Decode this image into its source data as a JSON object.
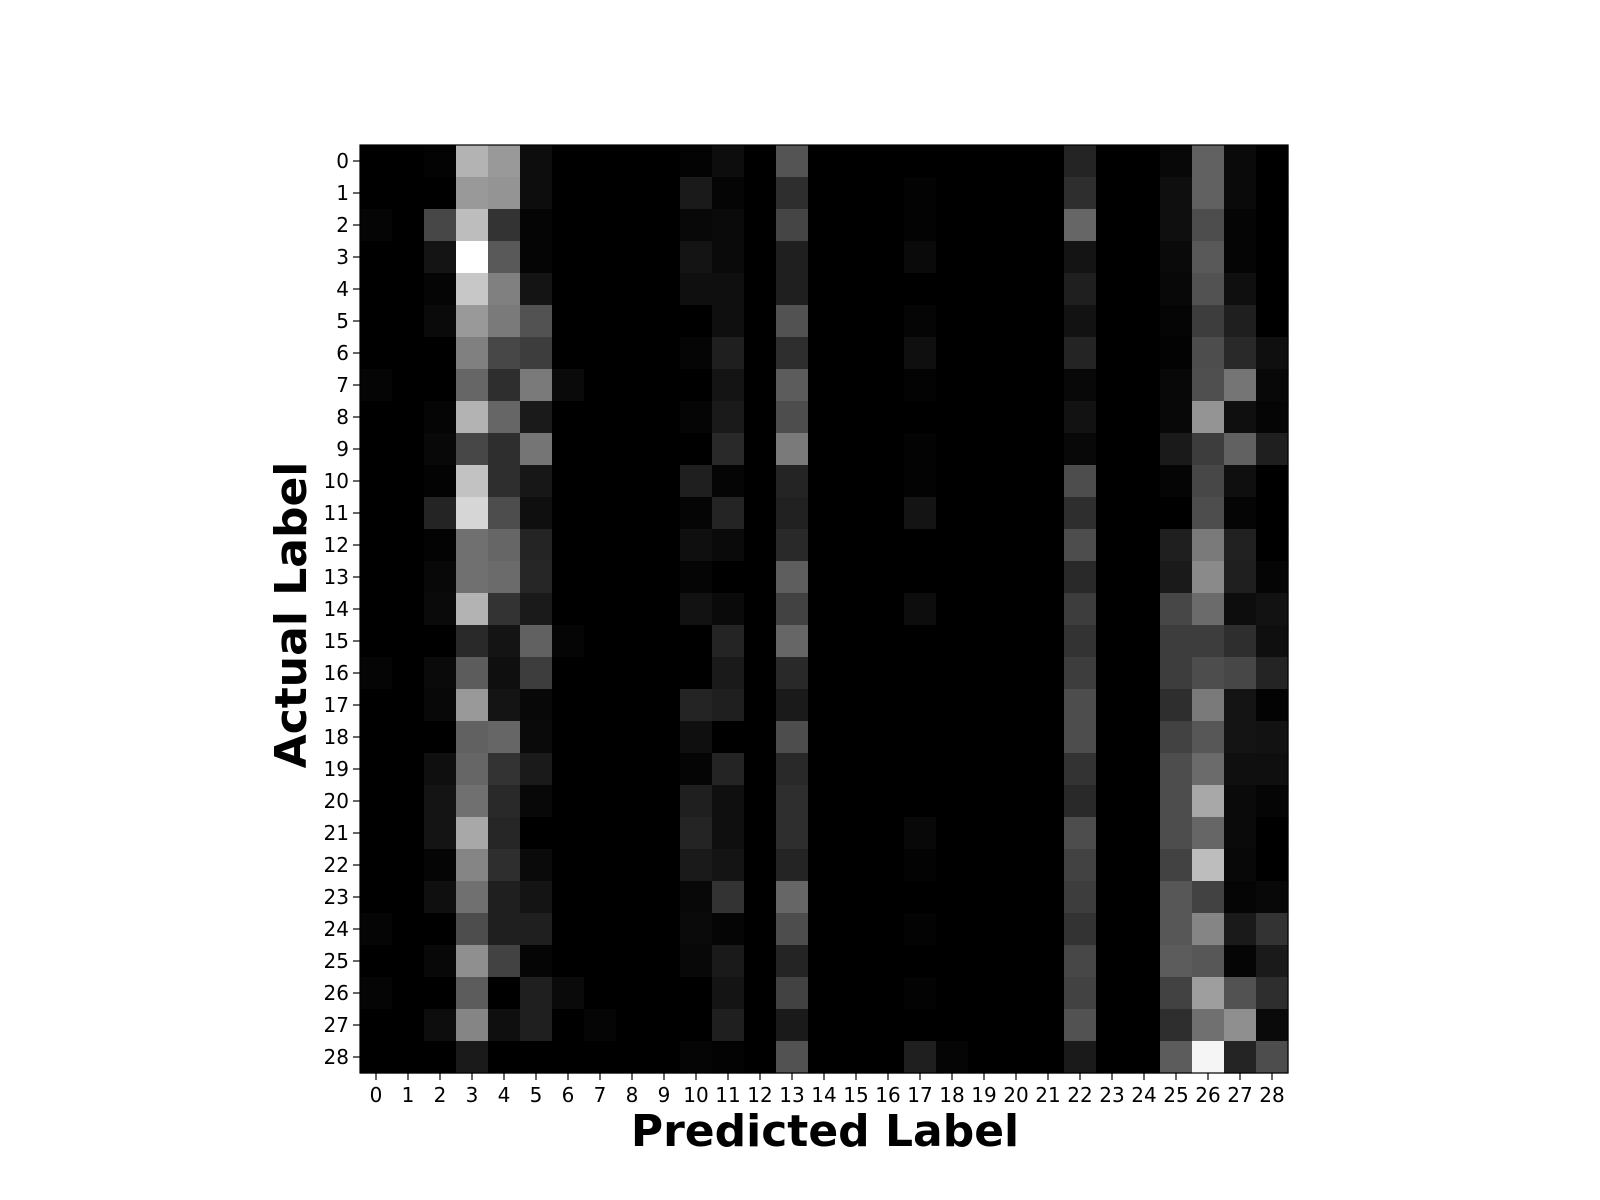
{
  "chart_data": {
    "type": "heatmap",
    "xlabel": "Predicted Label",
    "ylabel": "Actual Label",
    "x_ticks": [
      "0",
      "1",
      "2",
      "3",
      "4",
      "5",
      "6",
      "7",
      "8",
      "9",
      "10",
      "11",
      "12",
      "13",
      "14",
      "15",
      "16",
      "17",
      "18",
      "19",
      "20",
      "21",
      "22",
      "23",
      "24",
      "25",
      "26",
      "27",
      "28"
    ],
    "y_ticks": [
      "0",
      "1",
      "2",
      "3",
      "4",
      "5",
      "6",
      "7",
      "8",
      "9",
      "10",
      "11",
      "12",
      "13",
      "14",
      "15",
      "16",
      "17",
      "18",
      "19",
      "20",
      "21",
      "22",
      "23",
      "24",
      "25",
      "26",
      "27",
      "28"
    ],
    "colormap": "gray",
    "value_range": [
      0,
      1
    ],
    "grid": false,
    "values": [
      [
        0,
        0,
        0.01,
        0.7,
        0.6,
        0.05,
        0,
        0,
        0,
        0,
        0.01,
        0.05,
        0,
        0.33,
        0,
        0,
        0,
        0,
        0,
        0,
        0,
        0,
        0.14,
        0,
        0,
        0.03,
        0.38,
        0.04,
        0
      ],
      [
        0,
        0,
        0,
        0.6,
        0.58,
        0.05,
        0,
        0,
        0,
        0,
        0.1,
        0.02,
        0,
        0.18,
        0,
        0,
        0,
        0.01,
        0,
        0,
        0,
        0,
        0.18,
        0,
        0,
        0.06,
        0.38,
        0.04,
        0
      ],
      [
        0.02,
        0,
        0.28,
        0.74,
        0.2,
        0.02,
        0,
        0,
        0,
        0,
        0.03,
        0.04,
        0,
        0.27,
        0,
        0,
        0,
        0.01,
        0,
        0,
        0,
        0,
        0.4,
        0,
        0,
        0.06,
        0.3,
        0.02,
        0
      ],
      [
        0,
        0,
        0.08,
        1.0,
        0.35,
        0.02,
        0,
        0,
        0,
        0,
        0.08,
        0.04,
        0,
        0.12,
        0,
        0,
        0,
        0.04,
        0,
        0,
        0,
        0,
        0.08,
        0,
        0,
        0.04,
        0.35,
        0.02,
        0
      ],
      [
        0,
        0,
        0.02,
        0.78,
        0.5,
        0.08,
        0,
        0,
        0,
        0,
        0.06,
        0.06,
        0,
        0.12,
        0,
        0,
        0,
        0,
        0,
        0,
        0,
        0,
        0.12,
        0,
        0,
        0.03,
        0.32,
        0.06,
        0
      ],
      [
        0,
        0,
        0.04,
        0.6,
        0.48,
        0.32,
        0,
        0,
        0,
        0,
        0,
        0.06,
        0,
        0.32,
        0,
        0,
        0,
        0.02,
        0,
        0,
        0,
        0,
        0.07,
        0,
        0,
        0.02,
        0.24,
        0.12,
        0
      ],
      [
        0,
        0,
        0,
        0.5,
        0.28,
        0.24,
        0,
        0,
        0,
        0,
        0.02,
        0.12,
        0,
        0.18,
        0,
        0,
        0,
        0.06,
        0,
        0,
        0,
        0,
        0.14,
        0,
        0,
        0.01,
        0.3,
        0.16,
        0.06
      ],
      [
        0.02,
        0,
        0,
        0.4,
        0.18,
        0.48,
        0.04,
        0,
        0,
        0,
        0,
        0.08,
        0,
        0.36,
        0,
        0,
        0,
        0.01,
        0,
        0,
        0,
        0,
        0.03,
        0,
        0,
        0.03,
        0.31,
        0.46,
        0.03
      ],
      [
        0,
        0,
        0.02,
        0.7,
        0.4,
        0.1,
        0,
        0,
        0,
        0,
        0.02,
        0.1,
        0,
        0.3,
        0,
        0,
        0,
        0,
        0,
        0,
        0,
        0,
        0.07,
        0,
        0,
        0.03,
        0.58,
        0.06,
        0.02
      ],
      [
        0,
        0,
        0.03,
        0.28,
        0.18,
        0.46,
        0,
        0,
        0,
        0,
        0,
        0.16,
        0,
        0.48,
        0,
        0,
        0,
        0.01,
        0,
        0,
        0,
        0,
        0.03,
        0,
        0,
        0.1,
        0.24,
        0.38,
        0.12
      ],
      [
        0,
        0,
        0.01,
        0.76,
        0.18,
        0.09,
        0,
        0,
        0,
        0,
        0.12,
        0.02,
        0,
        0.14,
        0,
        0,
        0,
        0.01,
        0,
        0,
        0,
        0,
        0.3,
        0,
        0,
        0.02,
        0.28,
        0.06,
        0
      ],
      [
        0,
        0,
        0.14,
        0.84,
        0.3,
        0.06,
        0,
        0,
        0,
        0,
        0.02,
        0.14,
        0,
        0.13,
        0,
        0,
        0,
        0.08,
        0,
        0,
        0,
        0,
        0.18,
        0,
        0,
        0,
        0.3,
        0.02,
        0
      ],
      [
        0,
        0,
        0.01,
        0.44,
        0.4,
        0.14,
        0,
        0,
        0,
        0,
        0.06,
        0.04,
        0,
        0.16,
        0,
        0,
        0,
        0,
        0,
        0,
        0,
        0,
        0.3,
        0,
        0,
        0.12,
        0.48,
        0.13,
        0
      ],
      [
        0,
        0,
        0.03,
        0.44,
        0.42,
        0.15,
        0,
        0,
        0,
        0,
        0.02,
        0,
        0,
        0.37,
        0,
        0,
        0,
        0,
        0,
        0,
        0,
        0,
        0.16,
        0,
        0,
        0.1,
        0.54,
        0.12,
        0.02
      ],
      [
        0,
        0,
        0.04,
        0.7,
        0.2,
        0.1,
        0,
        0,
        0,
        0,
        0.07,
        0.04,
        0,
        0.26,
        0,
        0,
        0,
        0.05,
        0,
        0,
        0,
        0,
        0.24,
        0,
        0,
        0.28,
        0.42,
        0.05,
        0.07
      ],
      [
        0,
        0,
        0,
        0.16,
        0.08,
        0.38,
        0.02,
        0,
        0,
        0,
        0,
        0.14,
        0,
        0.4,
        0,
        0,
        0,
        0,
        0,
        0,
        0,
        0,
        0.2,
        0,
        0,
        0.24,
        0.24,
        0.18,
        0.06
      ],
      [
        0.02,
        0,
        0.04,
        0.36,
        0.06,
        0.24,
        0,
        0,
        0,
        0,
        0,
        0.1,
        0,
        0.16,
        0,
        0,
        0,
        0,
        0,
        0,
        0,
        0,
        0.24,
        0,
        0,
        0.24,
        0.3,
        0.28,
        0.14
      ],
      [
        0,
        0,
        0.03,
        0.6,
        0.08,
        0.03,
        0,
        0,
        0,
        0,
        0.14,
        0.12,
        0,
        0.1,
        0,
        0,
        0,
        0,
        0,
        0,
        0,
        0,
        0.3,
        0,
        0,
        0.18,
        0.48,
        0.08,
        0.01
      ],
      [
        0,
        0,
        0,
        0.38,
        0.4,
        0.04,
        0,
        0,
        0,
        0,
        0.06,
        0,
        0,
        0.3,
        0,
        0,
        0,
        0,
        0,
        0,
        0,
        0,
        0.3,
        0,
        0,
        0.26,
        0.34,
        0.08,
        0.07
      ],
      [
        0,
        0,
        0.06,
        0.4,
        0.2,
        0.1,
        0,
        0,
        0,
        0,
        0.02,
        0.14,
        0,
        0.16,
        0,
        0,
        0,
        0,
        0,
        0,
        0,
        0,
        0.2,
        0,
        0,
        0.3,
        0.42,
        0.06,
        0.06
      ],
      [
        0,
        0,
        0.08,
        0.44,
        0.16,
        0.03,
        0,
        0,
        0,
        0,
        0.12,
        0.06,
        0,
        0.18,
        0,
        0,
        0,
        0,
        0,
        0,
        0,
        0,
        0.16,
        0,
        0,
        0.3,
        0.66,
        0.04,
        0.02
      ],
      [
        0,
        0,
        0.08,
        0.66,
        0.15,
        0,
        0,
        0,
        0,
        0,
        0.14,
        0.06,
        0,
        0.18,
        0,
        0,
        0,
        0.03,
        0,
        0,
        0,
        0,
        0.3,
        0,
        0,
        0.3,
        0.4,
        0.04,
        0
      ],
      [
        0,
        0,
        0.02,
        0.52,
        0.18,
        0.04,
        0,
        0,
        0,
        0,
        0.1,
        0.08,
        0,
        0.14,
        0,
        0,
        0,
        0.01,
        0,
        0,
        0,
        0,
        0.26,
        0,
        0,
        0.26,
        0.74,
        0.03,
        0
      ],
      [
        0,
        0,
        0.06,
        0.44,
        0.12,
        0.08,
        0,
        0,
        0,
        0,
        0.03,
        0.2,
        0,
        0.4,
        0,
        0,
        0,
        0,
        0,
        0,
        0,
        0,
        0.24,
        0,
        0,
        0.34,
        0.26,
        0.02,
        0.03
      ],
      [
        0.02,
        0,
        0,
        0.3,
        0.12,
        0.12,
        0,
        0,
        0,
        0,
        0.04,
        0.02,
        0,
        0.3,
        0,
        0,
        0,
        0.01,
        0,
        0,
        0,
        0,
        0.2,
        0,
        0,
        0.34,
        0.52,
        0.1,
        0.2
      ],
      [
        0,
        0,
        0.03,
        0.56,
        0.26,
        0.02,
        0,
        0,
        0,
        0,
        0.03,
        0.1,
        0,
        0.14,
        0,
        0,
        0,
        0,
        0,
        0,
        0,
        0,
        0.28,
        0,
        0,
        0.36,
        0.34,
        0.02,
        0.1
      ],
      [
        0.02,
        0,
        0,
        0.36,
        0,
        0.12,
        0.04,
        0,
        0,
        0,
        0,
        0.08,
        0,
        0.26,
        0,
        0,
        0,
        0.01,
        0,
        0,
        0,
        0,
        0.26,
        0,
        0,
        0.26,
        0.62,
        0.32,
        0.18
      ],
      [
        0,
        0,
        0.05,
        0.52,
        0.06,
        0.12,
        0,
        0.02,
        0,
        0,
        0,
        0.12,
        0,
        0.1,
        0,
        0,
        0,
        0,
        0,
        0,
        0,
        0,
        0.32,
        0,
        0,
        0.18,
        0.44,
        0.56,
        0.04
      ],
      [
        0,
        0,
        0,
        0.1,
        0,
        0,
        0,
        0,
        0,
        0,
        0.02,
        0.01,
        0,
        0.32,
        0,
        0,
        0,
        0.12,
        0.02,
        0,
        0,
        0,
        0.1,
        0,
        0,
        0.36,
        0.96,
        0.14,
        0.3
      ]
    ]
  }
}
